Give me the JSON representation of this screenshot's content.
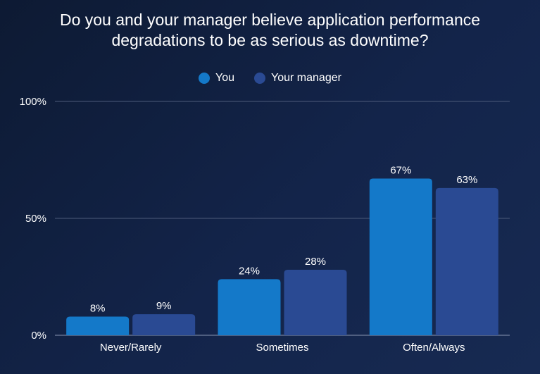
{
  "chart_data": {
    "type": "bar",
    "title_line1": "Do you and your manager believe application performance",
    "title_line2": "degradations to be as serious as downtime?",
    "categories": [
      "Never/Rarely",
      "Sometimes",
      "Often/Always"
    ],
    "series": [
      {
        "name": "You",
        "values": [
          8,
          24,
          67
        ],
        "labels": [
          "8%",
          "24%",
          "67%"
        ],
        "color": "#1479c9"
      },
      {
        "name": "Your manager",
        "values": [
          9,
          28,
          63
        ],
        "labels": [
          "9%",
          "28%",
          "63%"
        ],
        "color": "#2a4a93"
      }
    ],
    "y_ticks": [
      0,
      50,
      100
    ],
    "y_tick_labels": [
      "0%",
      "50%",
      "100%"
    ],
    "ylim": [
      0,
      100
    ],
    "grid": true,
    "legend_position": "top-center"
  }
}
